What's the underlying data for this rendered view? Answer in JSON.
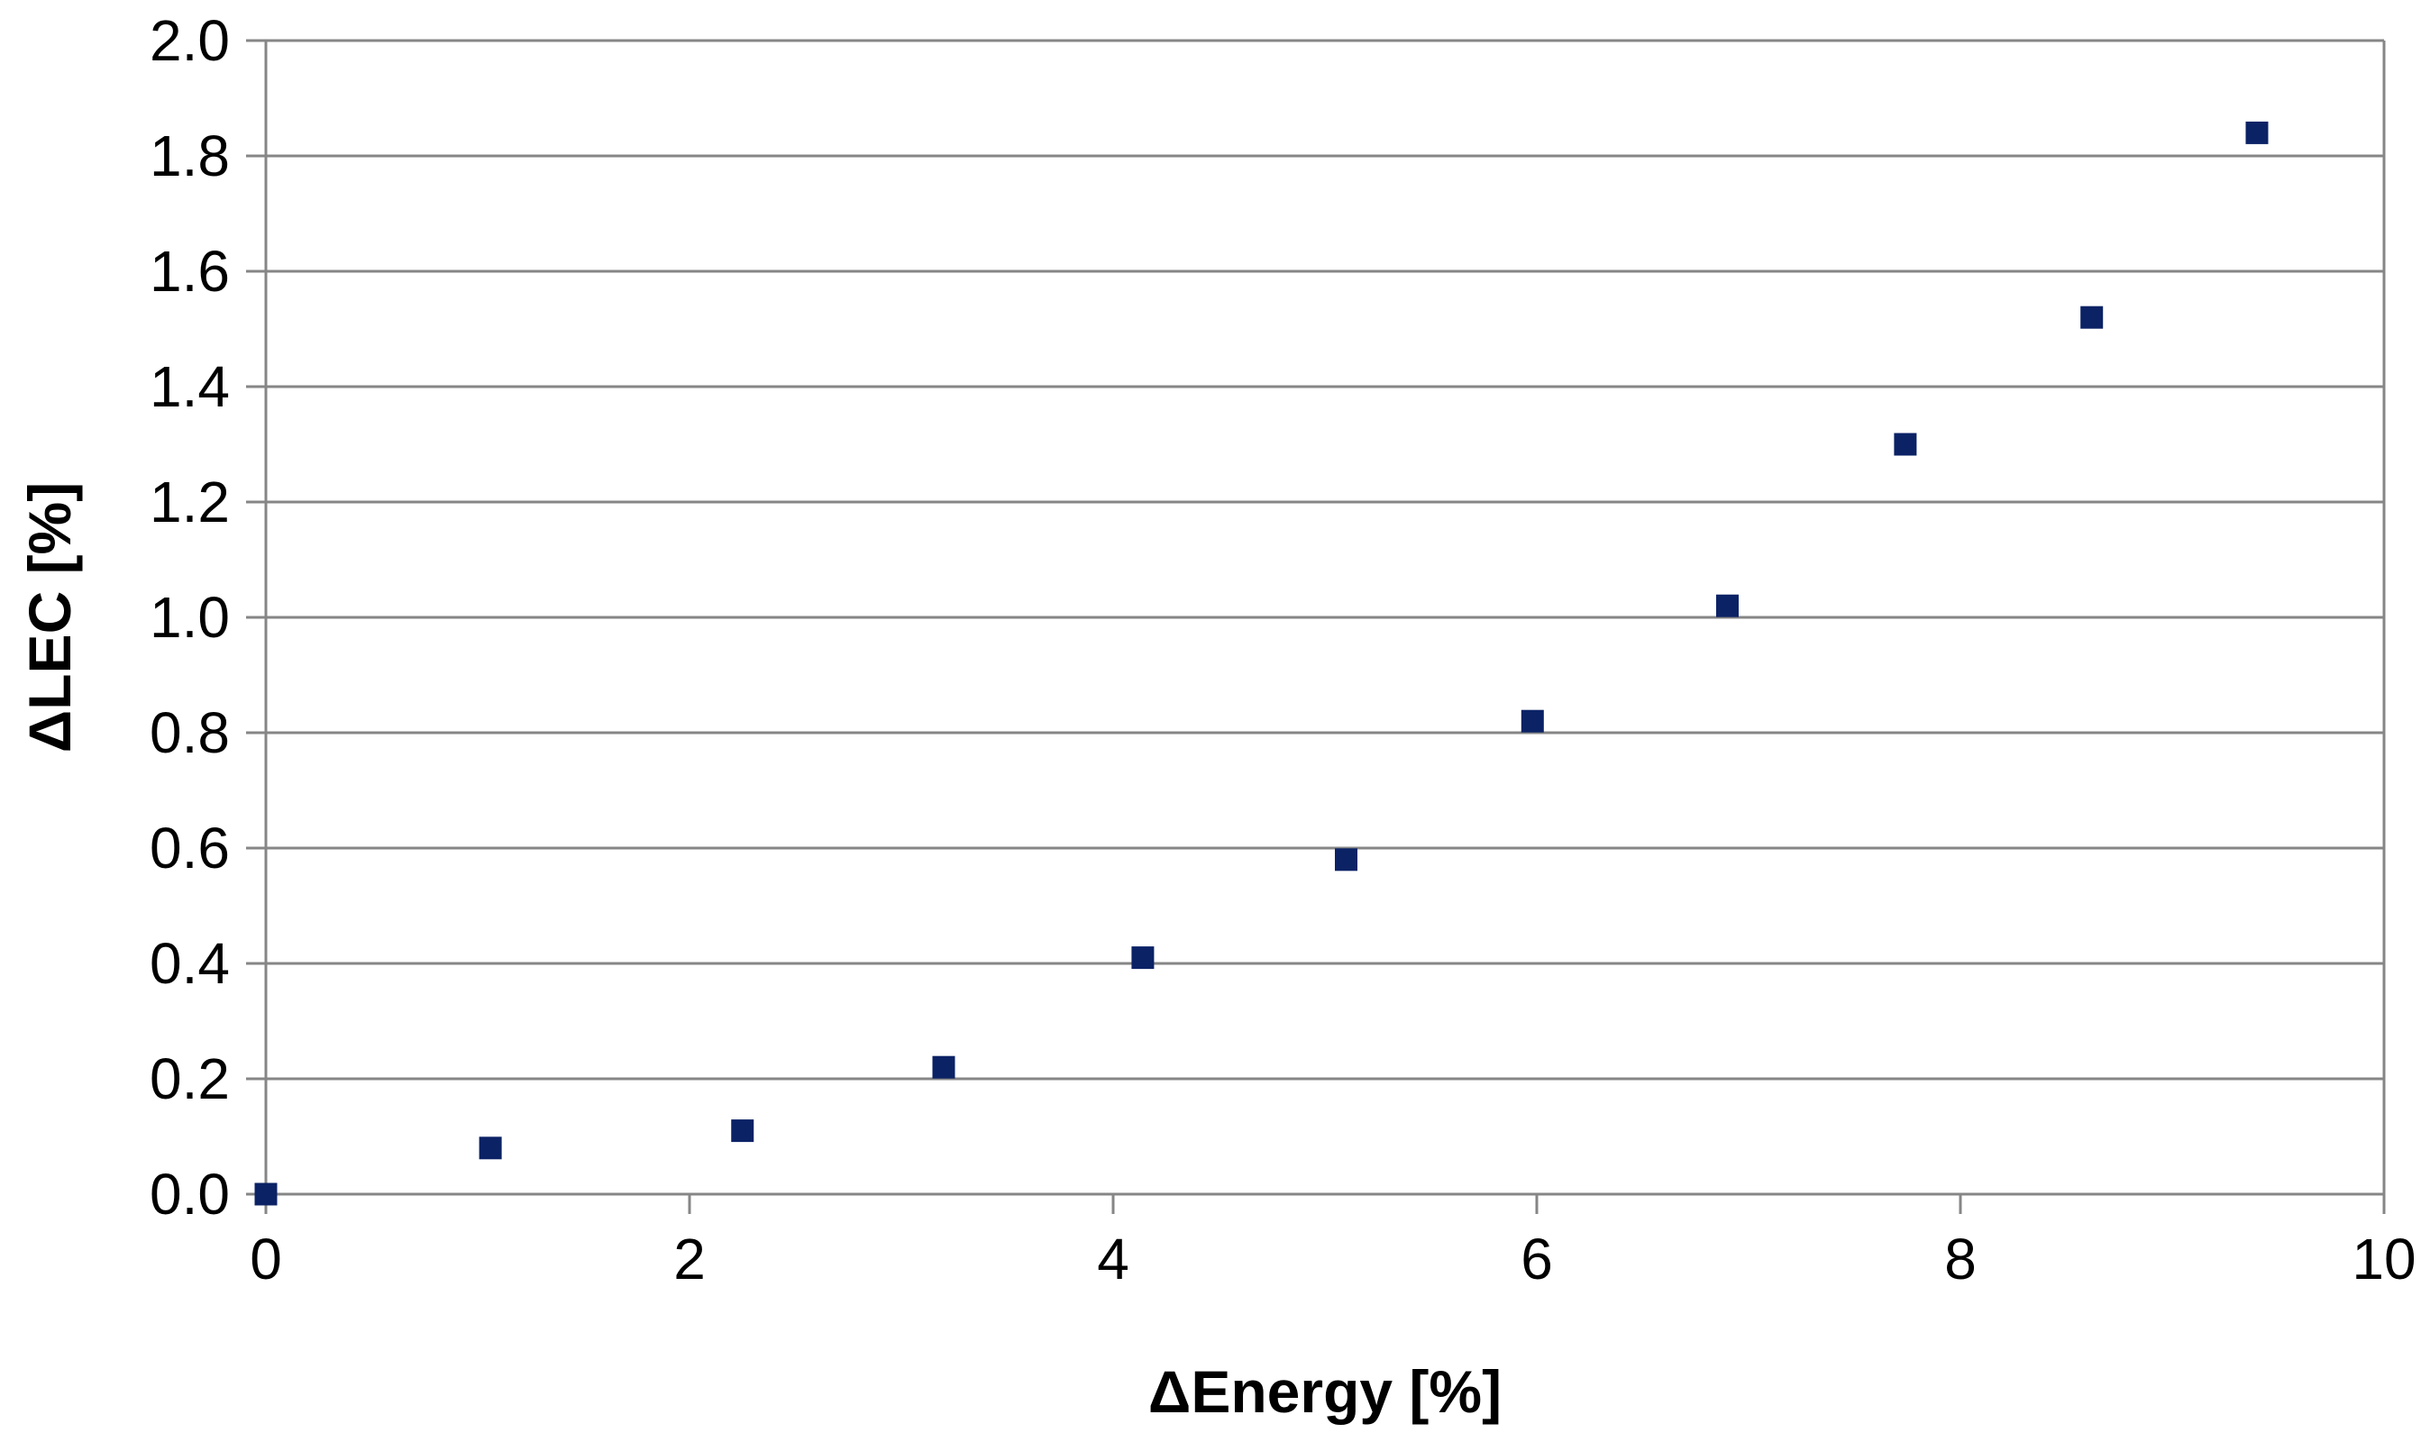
{
  "chart_data": {
    "type": "scatter",
    "title": "",
    "xlabel": "ΔEnergy [%]",
    "ylabel": "ΔLEC [%]",
    "xlim": [
      0,
      10
    ],
    "ylim": [
      0,
      2.0
    ],
    "x_ticks": [
      "0",
      "2",
      "4",
      "6",
      "8",
      "10"
    ],
    "y_ticks": [
      "0.0",
      "0.2",
      "0.4",
      "0.6",
      "0.8",
      "1.0",
      "1.2",
      "1.4",
      "1.6",
      "1.8",
      "2.0"
    ],
    "grid": "horizontal",
    "legend": "none",
    "marker": "square",
    "series": [
      {
        "color": "#0b2265",
        "points": [
          {
            "x": 0.0,
            "y": 0.0
          },
          {
            "x": 1.06,
            "y": 0.08
          },
          {
            "x": 2.25,
            "y": 0.11
          },
          {
            "x": 3.2,
            "y": 0.22
          },
          {
            "x": 4.14,
            "y": 0.41
          },
          {
            "x": 5.1,
            "y": 0.58
          },
          {
            "x": 5.98,
            "y": 0.82
          },
          {
            "x": 6.9,
            "y": 1.02
          },
          {
            "x": 7.74,
            "y": 1.3
          },
          {
            "x": 8.62,
            "y": 1.52
          },
          {
            "x": 9.4,
            "y": 1.84
          }
        ]
      }
    ],
    "colors": {
      "axis": "#868686",
      "grid": "#868686",
      "text": "#000000"
    }
  }
}
